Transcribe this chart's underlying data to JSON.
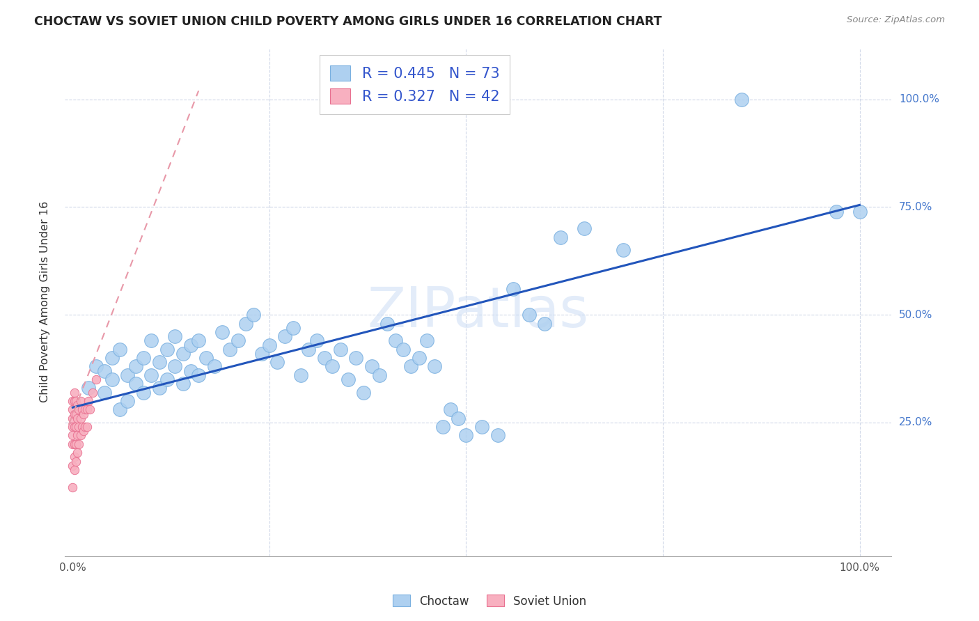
{
  "title": "CHOCTAW VS SOVIET UNION CHILD POVERTY AMONG GIRLS UNDER 16 CORRELATION CHART",
  "source": "Source: ZipAtlas.com",
  "ylabel": "Child Poverty Among Girls Under 16",
  "watermark": "ZIPatlas",
  "legend_blue_label": "Choctaw",
  "legend_pink_label": "Soviet Union",
  "blue_R": "0.445",
  "blue_N": "73",
  "pink_R": "0.327",
  "pink_N": "42",
  "blue_color": "#aed0f0",
  "blue_edge": "#7ab0e0",
  "pink_color": "#f8b0c0",
  "pink_edge": "#e87090",
  "blue_line_color": "#2255bb",
  "pink_line_color": "#e898a8",
  "grid_color": "#d0d8e8",
  "background_color": "#ffffff",
  "choctaw_x": [
    0.02,
    0.03,
    0.04,
    0.04,
    0.05,
    0.05,
    0.06,
    0.06,
    0.07,
    0.07,
    0.08,
    0.08,
    0.09,
    0.09,
    0.1,
    0.1,
    0.11,
    0.11,
    0.12,
    0.12,
    0.13,
    0.13,
    0.14,
    0.14,
    0.15,
    0.15,
    0.16,
    0.16,
    0.17,
    0.18,
    0.19,
    0.2,
    0.21,
    0.22,
    0.23,
    0.24,
    0.25,
    0.26,
    0.27,
    0.28,
    0.29,
    0.3,
    0.31,
    0.32,
    0.33,
    0.34,
    0.35,
    0.36,
    0.37,
    0.38,
    0.39,
    0.4,
    0.41,
    0.42,
    0.43,
    0.44,
    0.45,
    0.46,
    0.47,
    0.48,
    0.49,
    0.5,
    0.52,
    0.54,
    0.56,
    0.58,
    0.6,
    0.62,
    0.65,
    0.7,
    0.85,
    0.97,
    1.0
  ],
  "choctaw_y": [
    0.33,
    0.38,
    0.32,
    0.37,
    0.35,
    0.4,
    0.28,
    0.42,
    0.3,
    0.36,
    0.34,
    0.38,
    0.32,
    0.4,
    0.36,
    0.44,
    0.33,
    0.39,
    0.35,
    0.42,
    0.38,
    0.45,
    0.34,
    0.41,
    0.37,
    0.43,
    0.36,
    0.44,
    0.4,
    0.38,
    0.46,
    0.42,
    0.44,
    0.48,
    0.5,
    0.41,
    0.43,
    0.39,
    0.45,
    0.47,
    0.36,
    0.42,
    0.44,
    0.4,
    0.38,
    0.42,
    0.35,
    0.4,
    0.32,
    0.38,
    0.36,
    0.48,
    0.44,
    0.42,
    0.38,
    0.4,
    0.44,
    0.38,
    0.24,
    0.28,
    0.26,
    0.22,
    0.24,
    0.22,
    0.56,
    0.5,
    0.48,
    0.68,
    0.7,
    0.65,
    1.0,
    0.74,
    0.74
  ],
  "soviet_x": [
    0.0,
    0.0,
    0.0,
    0.0,
    0.0,
    0.0,
    0.0,
    0.0,
    0.002,
    0.002,
    0.002,
    0.002,
    0.002,
    0.002,
    0.002,
    0.004,
    0.004,
    0.004,
    0.004,
    0.004,
    0.006,
    0.006,
    0.006,
    0.006,
    0.008,
    0.008,
    0.008,
    0.01,
    0.01,
    0.01,
    0.012,
    0.012,
    0.014,
    0.014,
    0.016,
    0.016,
    0.018,
    0.018,
    0.02,
    0.022,
    0.025,
    0.03
  ],
  "soviet_y": [
    0.3,
    0.28,
    0.26,
    0.24,
    0.22,
    0.2,
    0.15,
    0.1,
    0.32,
    0.3,
    0.27,
    0.24,
    0.2,
    0.17,
    0.14,
    0.3,
    0.27,
    0.24,
    0.2,
    0.16,
    0.29,
    0.26,
    0.22,
    0.18,
    0.28,
    0.24,
    0.2,
    0.3,
    0.26,
    0.22,
    0.28,
    0.24,
    0.27,
    0.23,
    0.28,
    0.24,
    0.28,
    0.24,
    0.3,
    0.28,
    0.32,
    0.35
  ],
  "blue_line_x": [
    0.0,
    1.0
  ],
  "blue_line_y": [
    0.285,
    0.755
  ],
  "pink_line_x": [
    -0.005,
    0.16
  ],
  "pink_line_y": [
    0.245,
    1.02
  ],
  "xlim": [
    -0.01,
    1.04
  ],
  "ylim": [
    -0.06,
    1.12
  ],
  "xgrid": [
    0.25,
    0.5,
    0.75,
    1.0
  ],
  "ygrid": [
    0.25,
    0.5,
    0.75,
    1.0
  ],
  "ytick_labels": [
    "25.0%",
    "50.0%",
    "75.0%",
    "100.0%"
  ],
  "xtick_labels": [
    "0.0%",
    "100.0%"
  ],
  "ytick_color": "#4477cc"
}
